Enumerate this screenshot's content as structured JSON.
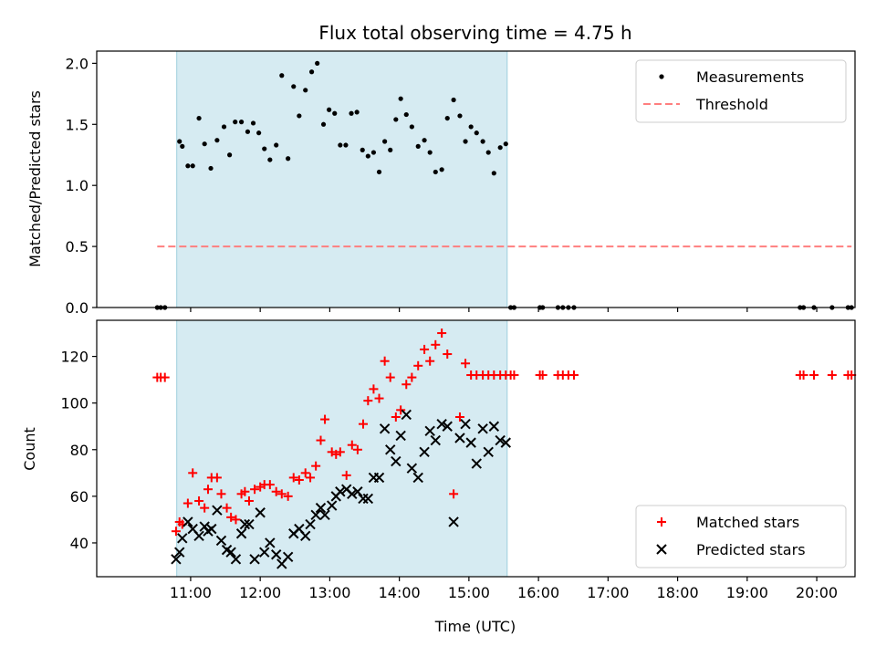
{
  "chart_data": {
    "title": "Flux total observing time = 4.75 h",
    "xlabel": "Time (UTC)",
    "x_unit": "hour of day (UTC)",
    "xlim": [
      9.65,
      20.55
    ],
    "xticks": [
      11,
      12,
      13,
      14,
      15,
      16,
      17,
      18,
      19,
      20
    ],
    "xtick_labels": [
      "11:00",
      "12:00",
      "13:00",
      "14:00",
      "15:00",
      "16:00",
      "17:00",
      "18:00",
      "19:00",
      "20:00"
    ],
    "observing_window": [
      10.8,
      15.55
    ],
    "panels": [
      {
        "type": "scatter",
        "ylabel": "Matched/Predicted stars",
        "ylim": [
          0,
          2.1
        ],
        "yticks": [
          0.0,
          0.5,
          1.0,
          1.5,
          2.0
        ],
        "ytick_labels": [
          "0.0",
          "0.5",
          "1.0",
          "1.5",
          "2.0"
        ],
        "legend": "top-right",
        "series": [
          {
            "name": "Measurements",
            "marker": "dot",
            "color": "#000000",
            "x": [
              10.52,
              10.57,
              10.63,
              10.84,
              10.88,
              10.96,
              11.03,
              11.12,
              11.2,
              11.29,
              11.38,
              11.48,
              11.56,
              11.64,
              11.73,
              11.82,
              11.9,
              11.98,
              12.06,
              12.14,
              12.23,
              12.31,
              12.4,
              12.48,
              12.56,
              12.65,
              12.74,
              12.82,
              12.91,
              12.99,
              13.07,
              13.15,
              13.23,
              13.31,
              13.39,
              13.47,
              13.55,
              13.63,
              13.71,
              13.79,
              13.87,
              13.95,
              14.02,
              14.1,
              14.18,
              14.27,
              14.36,
              14.44,
              14.52,
              14.61,
              14.69,
              14.78,
              14.87,
              14.95,
              15.03,
              15.11,
              15.2,
              15.28,
              15.36,
              15.45,
              15.53,
              15.6,
              15.65,
              16.02,
              16.06,
              16.28,
              16.35,
              16.43,
              16.51,
              19.76,
              19.81,
              19.96,
              20.22,
              20.45,
              20.5
            ],
            "y": [
              0.0,
              0.0,
              0.0,
              1.36,
              1.32,
              1.16,
              1.16,
              1.55,
              1.34,
              1.14,
              1.37,
              1.48,
              1.25,
              1.52,
              1.52,
              1.44,
              1.51,
              1.43,
              1.3,
              1.21,
              1.33,
              1.9,
              1.22,
              1.81,
              1.57,
              1.78,
              1.93,
              2.0,
              1.5,
              1.62,
              1.59,
              1.33,
              1.33,
              1.59,
              1.6,
              1.29,
              1.24,
              1.27,
              1.11,
              1.36,
              1.29,
              1.54,
              1.71,
              1.58,
              1.48,
              1.32,
              1.37,
              1.27,
              1.11,
              1.13,
              1.55,
              1.7,
              1.57,
              1.36,
              1.48,
              1.43,
              1.36,
              1.27,
              1.1,
              1.31,
              1.34,
              0.0,
              0.0,
              0.0,
              0.0,
              0.0,
              0.0,
              0.0,
              0.0,
              0.0,
              0.0,
              0.0,
              0.0,
              0.0,
              0.0
            ]
          },
          {
            "name": "Threshold",
            "type": "line",
            "style": "dashed",
            "color": "#ff7f7f",
            "x": [
              10.52,
              20.5
            ],
            "y": [
              0.5,
              0.5
            ]
          }
        ]
      },
      {
        "type": "scatter",
        "ylabel": "Count",
        "ylim": [
          25.5,
          135.5
        ],
        "yticks": [
          40,
          60,
          80,
          100,
          120
        ],
        "ytick_labels": [
          "40",
          "60",
          "80",
          "100",
          "120"
        ],
        "legend": "bottom-right",
        "series": [
          {
            "name": "Matched stars",
            "marker": "plus",
            "color": "#ff0000",
            "x": [
              10.52,
              10.57,
              10.63,
              10.79,
              10.84,
              10.88,
              10.96,
              11.03,
              11.12,
              11.2,
              11.25,
              11.3,
              11.38,
              11.44,
              11.52,
              11.58,
              11.65,
              11.73,
              11.78,
              11.84,
              11.92,
              12.0,
              12.06,
              12.14,
              12.23,
              12.31,
              12.4,
              12.48,
              12.56,
              12.65,
              12.72,
              12.8,
              12.87,
              12.93,
              13.03,
              13.09,
              13.15,
              13.24,
              13.32,
              13.4,
              13.48,
              13.55,
              13.63,
              13.71,
              13.79,
              13.87,
              13.95,
              14.02,
              14.1,
              14.18,
              14.27,
              14.36,
              14.44,
              14.52,
              14.61,
              14.69,
              14.78,
              14.87,
              14.95,
              15.03,
              15.11,
              15.2,
              15.28,
              15.36,
              15.45,
              15.53,
              15.6,
              15.65,
              16.02,
              16.06,
              16.28,
              16.35,
              16.43,
              16.51,
              19.76,
              19.81,
              19.96,
              20.22,
              20.45,
              20.5
            ],
            "y": [
              111,
              111,
              111,
              45,
              49,
              48,
              57,
              70,
              58,
              55,
              63,
              68,
              68,
              61,
              55,
              51,
              50,
              61,
              62,
              58,
              63,
              64,
              65,
              65,
              62,
              61,
              60,
              68,
              67,
              70,
              68,
              73,
              84,
              93,
              79,
              78,
              79,
              69,
              82,
              80,
              91,
              101,
              106,
              102,
              118,
              111,
              94,
              97,
              108,
              111,
              116,
              123,
              118,
              125,
              130,
              121,
              61,
              94,
              117,
              112,
              112,
              112,
              112,
              112,
              112,
              112,
              112,
              112,
              112,
              112,
              112,
              112,
              112,
              112,
              112,
              112,
              112,
              112,
              112,
              112
            ]
          },
          {
            "name": "Predicted stars",
            "marker": "x",
            "color": "#000000",
            "x": [
              10.79,
              10.84,
              10.88,
              10.96,
              11.03,
              11.12,
              11.2,
              11.25,
              11.3,
              11.38,
              11.44,
              11.52,
              11.58,
              11.65,
              11.73,
              11.78,
              11.84,
              11.92,
              12.0,
              12.06,
              12.14,
              12.23,
              12.31,
              12.4,
              12.48,
              12.56,
              12.65,
              12.72,
              12.8,
              12.87,
              12.93,
              13.03,
              13.09,
              13.15,
              13.24,
              13.32,
              13.4,
              13.48,
              13.55,
              13.63,
              13.71,
              13.79,
              13.87,
              13.95,
              14.02,
              14.1,
              14.18,
              14.27,
              14.36,
              14.44,
              14.52,
              14.61,
              14.69,
              14.78,
              14.87,
              14.95,
              15.03,
              15.11,
              15.2,
              15.28,
              15.36,
              15.45,
              15.53
            ],
            "y": [
              33,
              36,
              42,
              49,
              46,
              43,
              47,
              45,
              46,
              54,
              41,
              37,
              36,
              33,
              44,
              48,
              48,
              33,
              53,
              36,
              40,
              35,
              31,
              34,
              44,
              46,
              43,
              48,
              52,
              55,
              52,
              56,
              60,
              62,
              63,
              61,
              62,
              59,
              59,
              68,
              68,
              89,
              80,
              75,
              86,
              95,
              72,
              68,
              79,
              88,
              84,
              91,
              90,
              49,
              85,
              91,
              83,
              74,
              89,
              79,
              90,
              84,
              83
            ]
          }
        ]
      }
    ]
  }
}
